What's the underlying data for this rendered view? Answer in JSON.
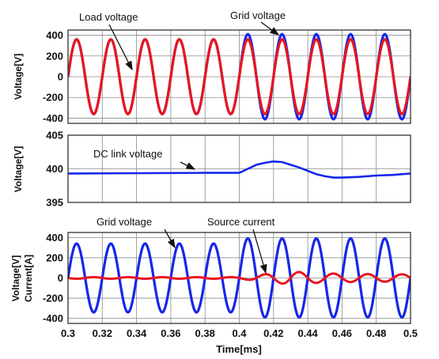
{
  "chart_data": [
    {
      "type": "line",
      "ylabel": "Voltage[V]",
      "xlim": [
        0.3,
        0.5
      ],
      "ylim": [
        -450,
        450
      ],
      "yticks": [
        400,
        200,
        0,
        -200,
        -400
      ],
      "xticks": [
        0.3,
        0.32,
        0.34,
        0.36,
        0.38,
        0.4,
        0.42,
        0.44,
        0.46,
        0.48,
        0.5
      ],
      "grid": true,
      "series": [
        {
          "name": "Load voltage",
          "color": "#e8161e",
          "amplitude": 360,
          "frequency_hz": 50,
          "phase_deg": 0
        },
        {
          "name": "Grid voltage",
          "color": "#1626e8",
          "amplitude_before": 360,
          "amplitude_after": 410,
          "change_at": 0.4,
          "frequency_hz": 50,
          "phase_deg": 0
        }
      ],
      "annotations": [
        {
          "text": "Load voltage",
          "points_to": [
            0.337,
            0
          ]
        },
        {
          "text": "Grid voltage",
          "points_to": [
            0.417,
            400
          ]
        }
      ]
    },
    {
      "type": "line",
      "ylabel": "Voltage[V]",
      "xlim": [
        0.3,
        0.5
      ],
      "ylim": [
        395,
        405
      ],
      "yticks": [
        405,
        400,
        395
      ],
      "xticks": [
        0.3,
        0.32,
        0.34,
        0.36,
        0.38,
        0.4,
        0.42,
        0.44,
        0.46,
        0.48,
        0.5
      ],
      "grid": true,
      "series": [
        {
          "name": "DC link voltage",
          "color": "#1626e8",
          "x": [
            0.3,
            0.38,
            0.4,
            0.405,
            0.41,
            0.415,
            0.42,
            0.425,
            0.43,
            0.435,
            0.44,
            0.445,
            0.45,
            0.455,
            0.46,
            0.47,
            0.48,
            0.49,
            0.5
          ],
          "values": [
            399.3,
            399.4,
            399.4,
            400.0,
            400.6,
            400.9,
            401.1,
            401.0,
            400.6,
            400.2,
            399.7,
            399.2,
            398.9,
            398.7,
            398.7,
            398.8,
            399.0,
            399.1,
            399.3
          ]
        }
      ],
      "annotations": [
        {
          "text": "DC link voltage",
          "points_to": [
            0.374,
            399.3
          ]
        }
      ]
    },
    {
      "type": "line",
      "ylabel": "Voltage[V]",
      "ylabel2": "Current[A]",
      "xlabel": "Time[ms]",
      "xlim": [
        0.3,
        0.5
      ],
      "ylim": [
        -450,
        450
      ],
      "yticks": [
        400,
        200,
        0,
        -200,
        -400
      ],
      "xticks": [
        0.3,
        0.32,
        0.34,
        0.36,
        0.38,
        0.4,
        0.42,
        0.44,
        0.46,
        0.48,
        0.5
      ],
      "xticklabels": [
        "0.3",
        "0.32",
        "0.34",
        "0.36",
        "0.38",
        "0.4",
        "0.42",
        "0.44",
        "0.46",
        "0.48",
        "0.5"
      ],
      "grid": true,
      "series": [
        {
          "name": "Grid voltage",
          "color": "#1626e8",
          "amplitude_before": 340,
          "amplitude_after": 390,
          "change_at": 0.4,
          "frequency_hz": 50,
          "phase_deg": 0
        },
        {
          "name": "Source current",
          "color": "#e8161e",
          "amplitude_before": 8,
          "peak": 65,
          "peak_at": 0.43,
          "settle_amplitude": 35,
          "frequency_hz": 50,
          "phase_deg": 180
        }
      ],
      "annotations": [
        {
          "text": "Grid voltage",
          "points_to": [
            0.362,
            340
          ]
        },
        {
          "text": "Source current",
          "points_to": [
            0.423,
            30
          ]
        }
      ]
    }
  ]
}
